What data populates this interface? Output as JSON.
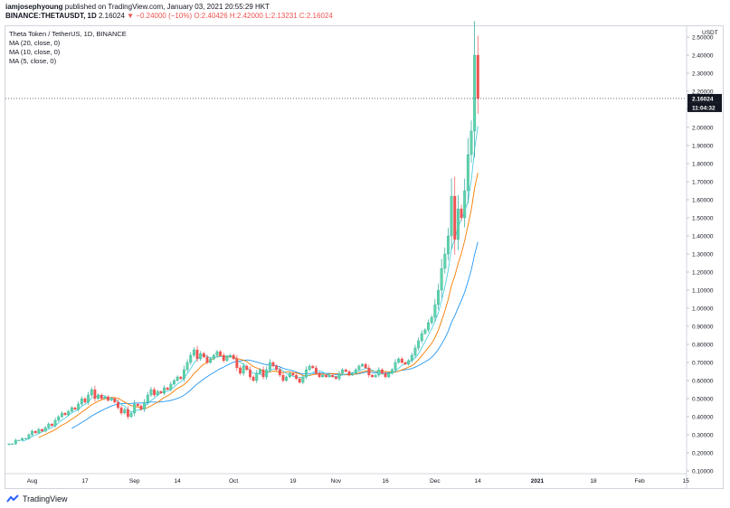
{
  "header": {
    "author": "iamjosephyoung",
    "published": "published on TradingView.com, January 03, 2021 20:55:29 HKT",
    "symbol": "BINANCE:THETAUSDT, 1D",
    "price": "2.16024",
    "change": "▼ −0.24000 (−10%)",
    "ohlc": "O:2.40426 H:2.42000 L:2.13231 C:2.16024"
  },
  "legend": {
    "title": "Theta Token / TetherUS, 1D, BINANCE",
    "ma20": "MA (20, close, 0)",
    "ma10": "MA (10, close, 0)",
    "ma5": "MA (5, close, 0)"
  },
  "price_axis": {
    "currency": "USDT",
    "last_price": "2.16024",
    "countdown": "11:04:32"
  },
  "footer": {
    "brand": "TradingView"
  },
  "colors": {
    "up": "#26a69a",
    "up_fill": "#5fd3a8",
    "down": "#ef5350",
    "ma20": "#2196f3",
    "ma10": "#f57c00",
    "ma5": "#4dd0e1"
  },
  "chart_data": {
    "type": "candlestick",
    "y_ticks": [
      "0.10000",
      "0.20000",
      "0.30000",
      "0.40000",
      "0.50000",
      "0.60000",
      "0.70000",
      "0.80000",
      "0.90000",
      "1.00000",
      "1.10000",
      "1.20000",
      "1.30000",
      "1.40000",
      "1.50000",
      "1.60000",
      "1.70000",
      "1.80000",
      "1.90000",
      "2.00000",
      "2.10000",
      "2.20000",
      "2.30000",
      "2.40000",
      "2.50000"
    ],
    "x_ticks": [
      "Aug",
      "17",
      "Sep",
      "14",
      "Oct",
      "19",
      "Nov",
      "16",
      "Dec",
      "14",
      "2021",
      "18",
      "Feb",
      "15"
    ],
    "ylim": [
      0.09,
      2.56
    ],
    "start_date": "2020-07-25",
    "closes": [
      0.25,
      0.25,
      0.27,
      0.27,
      0.28,
      0.28,
      0.3,
      0.32,
      0.31,
      0.33,
      0.32,
      0.34,
      0.36,
      0.35,
      0.38,
      0.4,
      0.42,
      0.41,
      0.43,
      0.45,
      0.44,
      0.47,
      0.5,
      0.48,
      0.52,
      0.55,
      0.5,
      0.52,
      0.5,
      0.51,
      0.49,
      0.5,
      0.48,
      0.45,
      0.42,
      0.44,
      0.4,
      0.42,
      0.47,
      0.46,
      0.44,
      0.48,
      0.52,
      0.55,
      0.52,
      0.54,
      0.53,
      0.56,
      0.55,
      0.58,
      0.6,
      0.62,
      0.61,
      0.66,
      0.7,
      0.74,
      0.77,
      0.72,
      0.75,
      0.73,
      0.7,
      0.72,
      0.74,
      0.76,
      0.74,
      0.71,
      0.73,
      0.74,
      0.72,
      0.67,
      0.64,
      0.68,
      0.66,
      0.62,
      0.6,
      0.64,
      0.66,
      0.62,
      0.66,
      0.7,
      0.68,
      0.66,
      0.63,
      0.6,
      0.62,
      0.64,
      0.63,
      0.61,
      0.59,
      0.62,
      0.66,
      0.68,
      0.67,
      0.64,
      0.62,
      0.63,
      0.62,
      0.63,
      0.62,
      0.61,
      0.64,
      0.66,
      0.65,
      0.63,
      0.64,
      0.66,
      0.68,
      0.69,
      0.67,
      0.63,
      0.62,
      0.63,
      0.66,
      0.64,
      0.62,
      0.64,
      0.66,
      0.7,
      0.72,
      0.7,
      0.69,
      0.71,
      0.74,
      0.78,
      0.82,
      0.86,
      0.88,
      0.92,
      0.95,
      1.02,
      1.1,
      1.22,
      1.3,
      1.4,
      1.62,
      1.38,
      1.55,
      1.5,
      1.65,
      1.85,
      1.98,
      2.4,
      2.16
    ]
  }
}
